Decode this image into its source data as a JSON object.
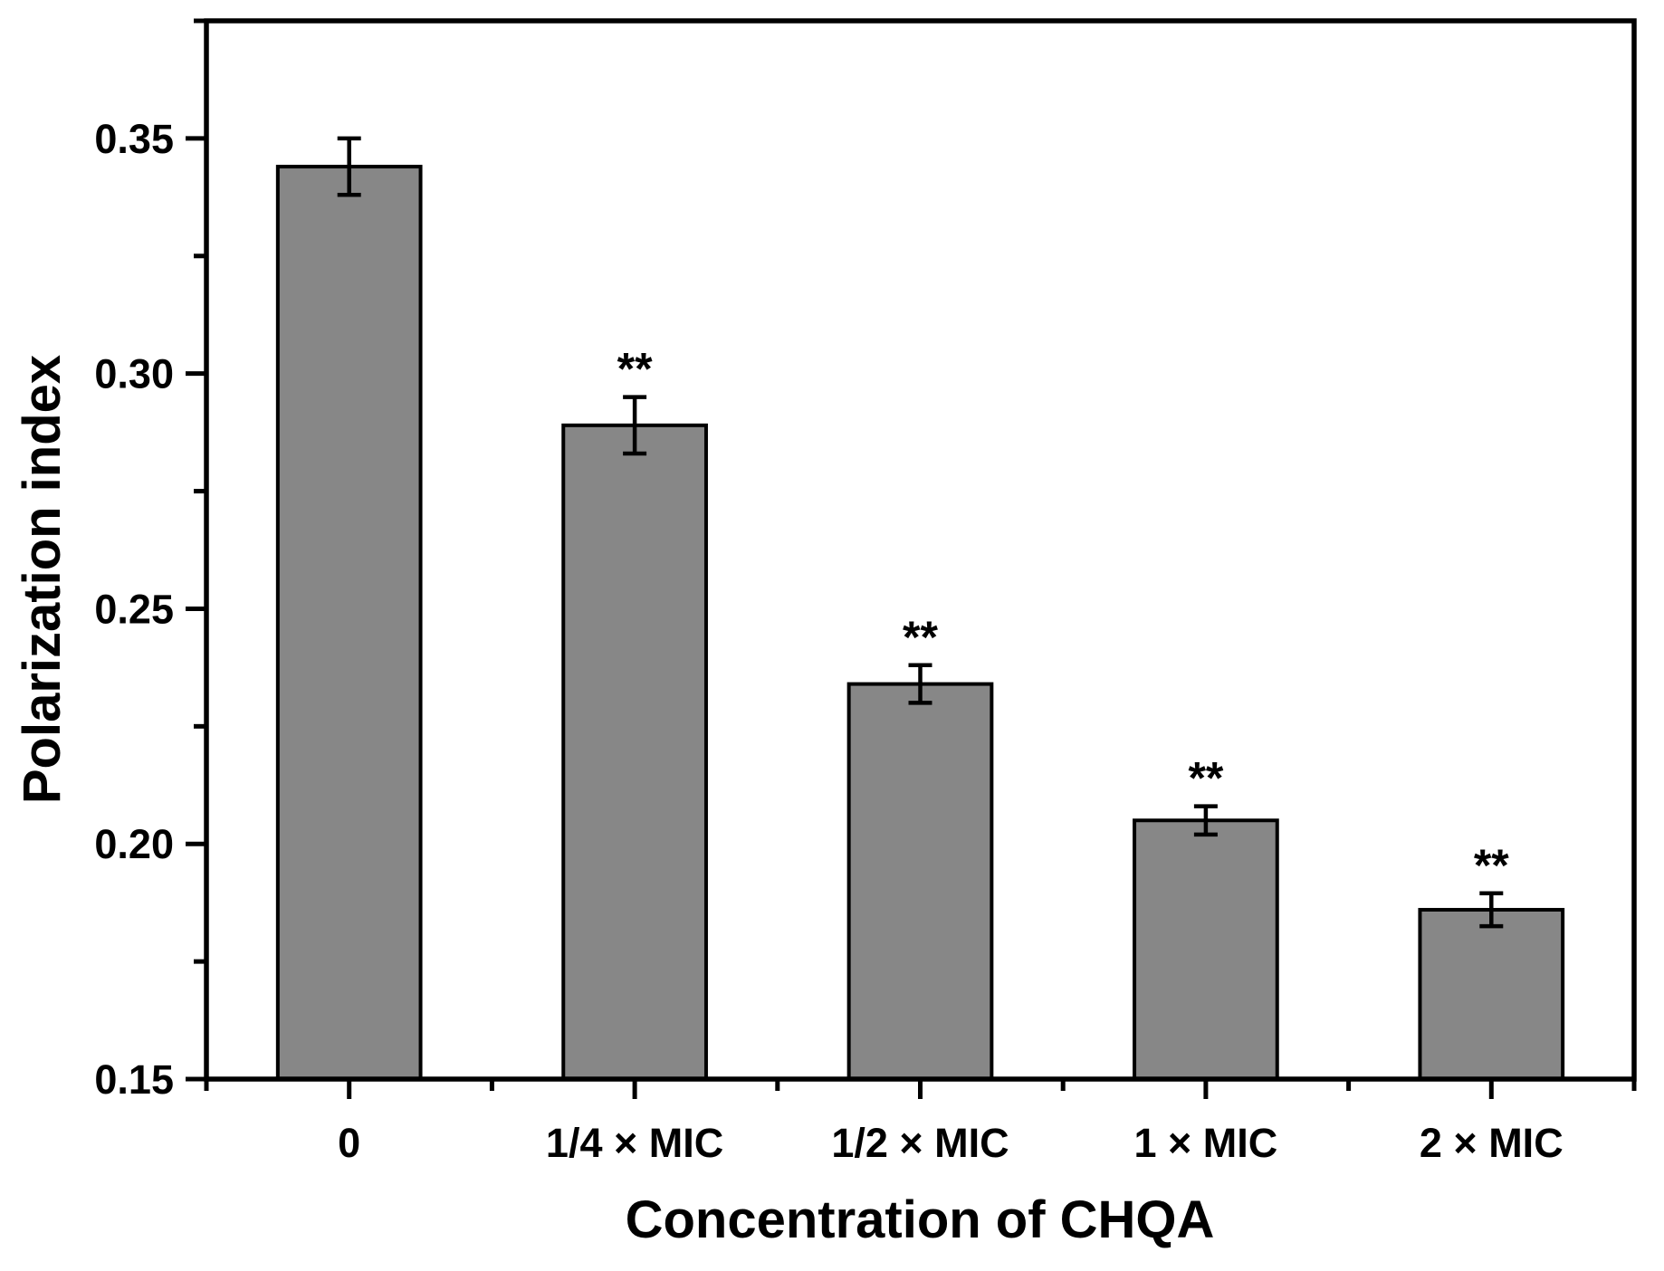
{
  "chart_data": {
    "type": "bar",
    "title": "",
    "xlabel": "Concentration of CHQA",
    "ylabel": "Polarization index",
    "categories": [
      "0",
      "1/4 × MIC",
      "1/2 × MIC",
      "1 × MIC",
      "2 × MIC"
    ],
    "values": [
      0.344,
      0.289,
      0.234,
      0.205,
      0.186
    ],
    "errors": [
      0.006,
      0.006,
      0.004,
      0.003,
      0.0035
    ],
    "significance": [
      "",
      "**",
      "**",
      "**",
      "**"
    ],
    "ylim": [
      0.15,
      0.375
    ],
    "yticks": [
      0.15,
      0.2,
      0.25,
      0.3,
      0.35
    ],
    "ytick_labels": [
      "0.15",
      "0.20",
      "0.25",
      "0.30",
      "0.35"
    ],
    "bar_fill": "#878787",
    "bar_border": "#000000",
    "axis_color": "#000000",
    "background": "#ffffff",
    "grid": false,
    "legend": null,
    "error_bars": "symmetric with caps",
    "bar_width_fraction": 0.5
  }
}
